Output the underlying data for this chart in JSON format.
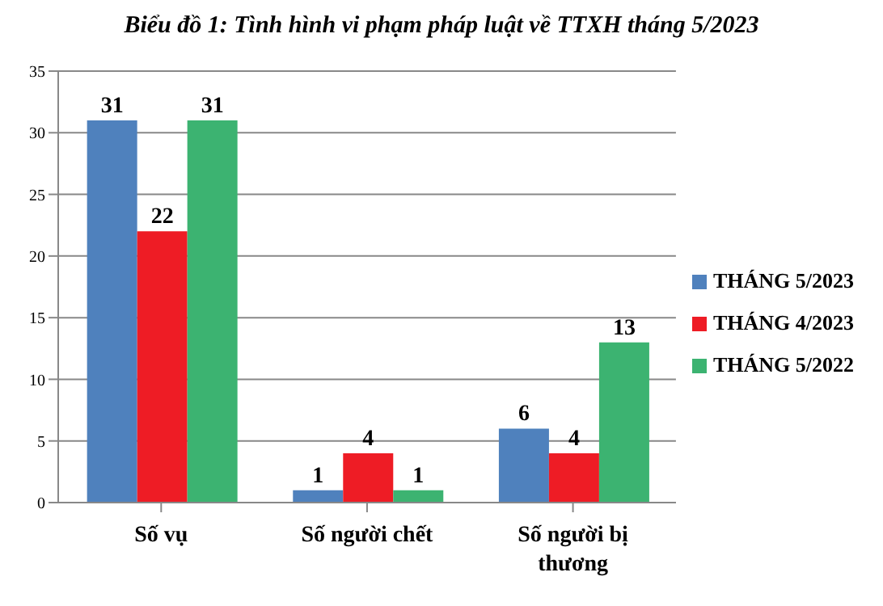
{
  "chart_data": {
    "type": "bar",
    "title": "Biểu đồ 1: Tình hình vi phạm pháp luật về TTXH tháng 5/2023",
    "categories": [
      "Số vụ",
      "Số người chết",
      "Số người bị thương"
    ],
    "series": [
      {
        "name": "THÁNG 5/2023",
        "color": "#4f81bd",
        "values": [
          31,
          1,
          6
        ]
      },
      {
        "name": "THÁNG 4/2023",
        "color": "#ee1c25",
        "values": [
          22,
          4,
          4
        ]
      },
      {
        "name": "THÁNG 5/2022",
        "color": "#3cb371",
        "values": [
          31,
          1,
          13
        ]
      }
    ],
    "ylim": [
      0,
      35
    ],
    "yticks": [
      0,
      5,
      10,
      15,
      20,
      25,
      30,
      35
    ],
    "grid": "y",
    "legend": "right",
    "data_labels": true
  }
}
